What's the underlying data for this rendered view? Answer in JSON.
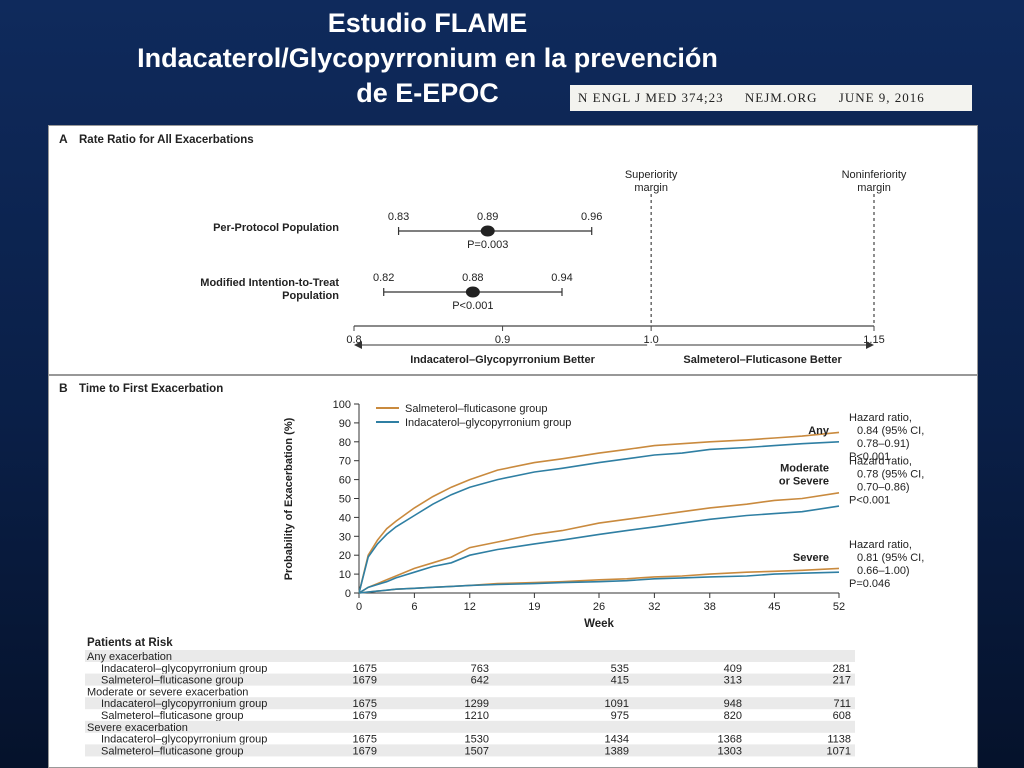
{
  "slide": {
    "title_line1": "Estudio FLAME",
    "title_line2": "Indacaterol/Glycopyrronium en la prevención",
    "title_line3": "de E-EPOC",
    "citation": "N ENGL J MED 374;23     NEJM.ORG     JUNE 9, 2016"
  },
  "chart_data": [
    {
      "type": "scatter",
      "panel_label": "A",
      "title": "Rate Ratio for All Exacerbations",
      "x_axis": {
        "ticks": [
          0.8,
          0.9,
          1.0,
          1.15
        ],
        "tick_labels": [
          "0.8",
          "0.9",
          "1.0",
          "1.15"
        ],
        "xlim": [
          0.8,
          1.15
        ]
      },
      "reference_lines": [
        {
          "x": 1.0,
          "label_line1": "Superiority",
          "label_line2": "margin"
        },
        {
          "x": 1.15,
          "label_line1": "Noninferiority",
          "label_line2": "margin"
        }
      ],
      "rows": [
        {
          "label_line1": "Per-Protocol Population",
          "label_line2": "",
          "estimate": 0.89,
          "lower": 0.83,
          "upper": 0.96,
          "estimate_label": "0.89",
          "lower_label": "0.83",
          "upper_label": "0.96",
          "p_label": "P=0.003"
        },
        {
          "label_line1": "Modified Intention-to-Treat",
          "label_line2": "Population",
          "estimate": 0.88,
          "lower": 0.82,
          "upper": 0.94,
          "estimate_label": "0.88",
          "lower_label": "0.82",
          "upper_label": "0.94",
          "p_label": "P<0.001"
        }
      ],
      "left_arrow_label": "Indacaterol–Glycopyrronium Better",
      "right_arrow_label": "Salmeterol–Fluticasone Better"
    },
    {
      "type": "line",
      "panel_label": "B",
      "title": "Time to First Exacerbation",
      "xlabel": "Week",
      "ylabel": "Probability of Exacerbation (%)",
      "x_ticks": [
        0,
        6,
        12,
        19,
        26,
        32,
        38,
        45,
        52
      ],
      "y_ticks": [
        0,
        10,
        20,
        30,
        40,
        50,
        60,
        70,
        80,
        90,
        100
      ],
      "xlim": [
        0,
        52
      ],
      "ylim": [
        0,
        100
      ],
      "grid": false,
      "legend": {
        "placement": "top-left",
        "entries": [
          {
            "name": "Salmeterol–fluticasone group",
            "color": "#c98a3e"
          },
          {
            "name": "Indacaterol–glycopyrronium group",
            "color": "#2f7fa3"
          }
        ]
      },
      "x": [
        0,
        1,
        2,
        3,
        4,
        6,
        8,
        10,
        12,
        15,
        19,
        22,
        26,
        29,
        32,
        35,
        38,
        42,
        45,
        48,
        52
      ],
      "series": [
        {
          "name": "Salmeterol–fluticasone group",
          "outcome": "Any",
          "color": "#c98a3e",
          "values": [
            0,
            20,
            28,
            34,
            38,
            45,
            51,
            56,
            60,
            65,
            69,
            71,
            74,
            76,
            78,
            79,
            80,
            81,
            82,
            83,
            85
          ]
        },
        {
          "name": "Indacaterol–glycopyrronium group",
          "outcome": "Any",
          "color": "#2f7fa3",
          "values": [
            0,
            19,
            26,
            31,
            35,
            41,
            47,
            52,
            56,
            60,
            64,
            66,
            69,
            71,
            73,
            74,
            76,
            77,
            78,
            79,
            80
          ]
        },
        {
          "name": "Salmeterol–fluticasone group",
          "outcome": "Moderate or Severe",
          "color": "#c98a3e",
          "values": [
            0,
            3,
            5,
            7,
            9,
            13,
            16,
            19,
            24,
            27,
            31,
            33,
            37,
            39,
            41,
            43,
            45,
            47,
            49,
            50,
            53
          ]
        },
        {
          "name": "Indacaterol–glycopyrronium group",
          "outcome": "Moderate or Severe",
          "color": "#2f7fa3",
          "values": [
            0,
            3,
            4.5,
            6,
            8,
            11,
            14,
            16,
            20,
            23,
            26,
            28,
            31,
            33,
            35,
            37,
            39,
            41,
            42,
            43,
            46
          ]
        },
        {
          "name": "Salmeterol–fluticasone group",
          "outcome": "Severe",
          "color": "#c98a3e",
          "values": [
            0,
            0.5,
            1,
            1.5,
            2,
            2.5,
            3,
            3.5,
            4,
            5,
            5.5,
            6,
            7,
            7.5,
            8.5,
            9,
            10,
            11,
            11.5,
            12,
            13
          ]
        },
        {
          "name": "Indacaterol–glycopyrronium group",
          "outcome": "Severe",
          "color": "#2f7fa3",
          "values": [
            0,
            0.5,
            1,
            1.5,
            2,
            2.5,
            3,
            3.5,
            4,
            4.5,
            5,
            5.5,
            6,
            6.5,
            7.5,
            8,
            8.5,
            9,
            10,
            10.5,
            11
          ]
        }
      ],
      "annotations": [
        {
          "outcome": "Any",
          "label_line1": "Any",
          "label_line2": "",
          "y": 84,
          "hr_line1": "Hazard ratio,",
          "hr_line2": "0.84 (95% CI,",
          "hr_line3": "0.78–0.91)",
          "hr_line4": "P<0.001"
        },
        {
          "outcome": "Moderate or Severe",
          "label_line1": "Moderate",
          "label_line2": "or Severe",
          "y": 61,
          "hr_line1": "Hazard ratio,",
          "hr_line2": "0.78 (95% CI,",
          "hr_line3": "0.70–0.86)",
          "hr_line4": "P<0.001"
        },
        {
          "outcome": "Severe",
          "label_line1": "Severe",
          "label_line2": "",
          "y": 17,
          "hr_line1": "Hazard ratio,",
          "hr_line2": "0.81 (95% CI,",
          "hr_line3": "0.66–1.00)",
          "hr_line4": "P=0.046"
        }
      ],
      "patients_at_risk": {
        "title": "Patients at Risk",
        "rows": [
          {
            "kind": "header",
            "label": "Any exacerbation"
          },
          {
            "kind": "data",
            "label": "Indacaterol–glycopyrronium group",
            "values": [
              "1675",
              "763",
              "535",
              "409",
              "281"
            ]
          },
          {
            "kind": "data",
            "label": "Salmeterol–fluticasone group",
            "values": [
              "1679",
              "642",
              "415",
              "313",
              "217"
            ]
          },
          {
            "kind": "header",
            "label": "Moderate or severe exacerbation"
          },
          {
            "kind": "data",
            "label": "Indacaterol–glycopyrronium group",
            "values": [
              "1675",
              "1299",
              "1091",
              "948",
              "711"
            ]
          },
          {
            "kind": "data",
            "label": "Salmeterol–fluticasone group",
            "values": [
              "1679",
              "1210",
              "975",
              "820",
              "608"
            ]
          },
          {
            "kind": "header",
            "label": "Severe exacerbation"
          },
          {
            "kind": "data",
            "label": "Indacaterol–glycopyrronium group",
            "values": [
              "1675",
              "1530",
              "1434",
              "1368",
              "1138"
            ]
          },
          {
            "kind": "data",
            "label": "Salmeterol–fluticasone group",
            "values": [
              "1679",
              "1507",
              "1389",
              "1303",
              "1071"
            ]
          }
        ]
      }
    }
  ]
}
